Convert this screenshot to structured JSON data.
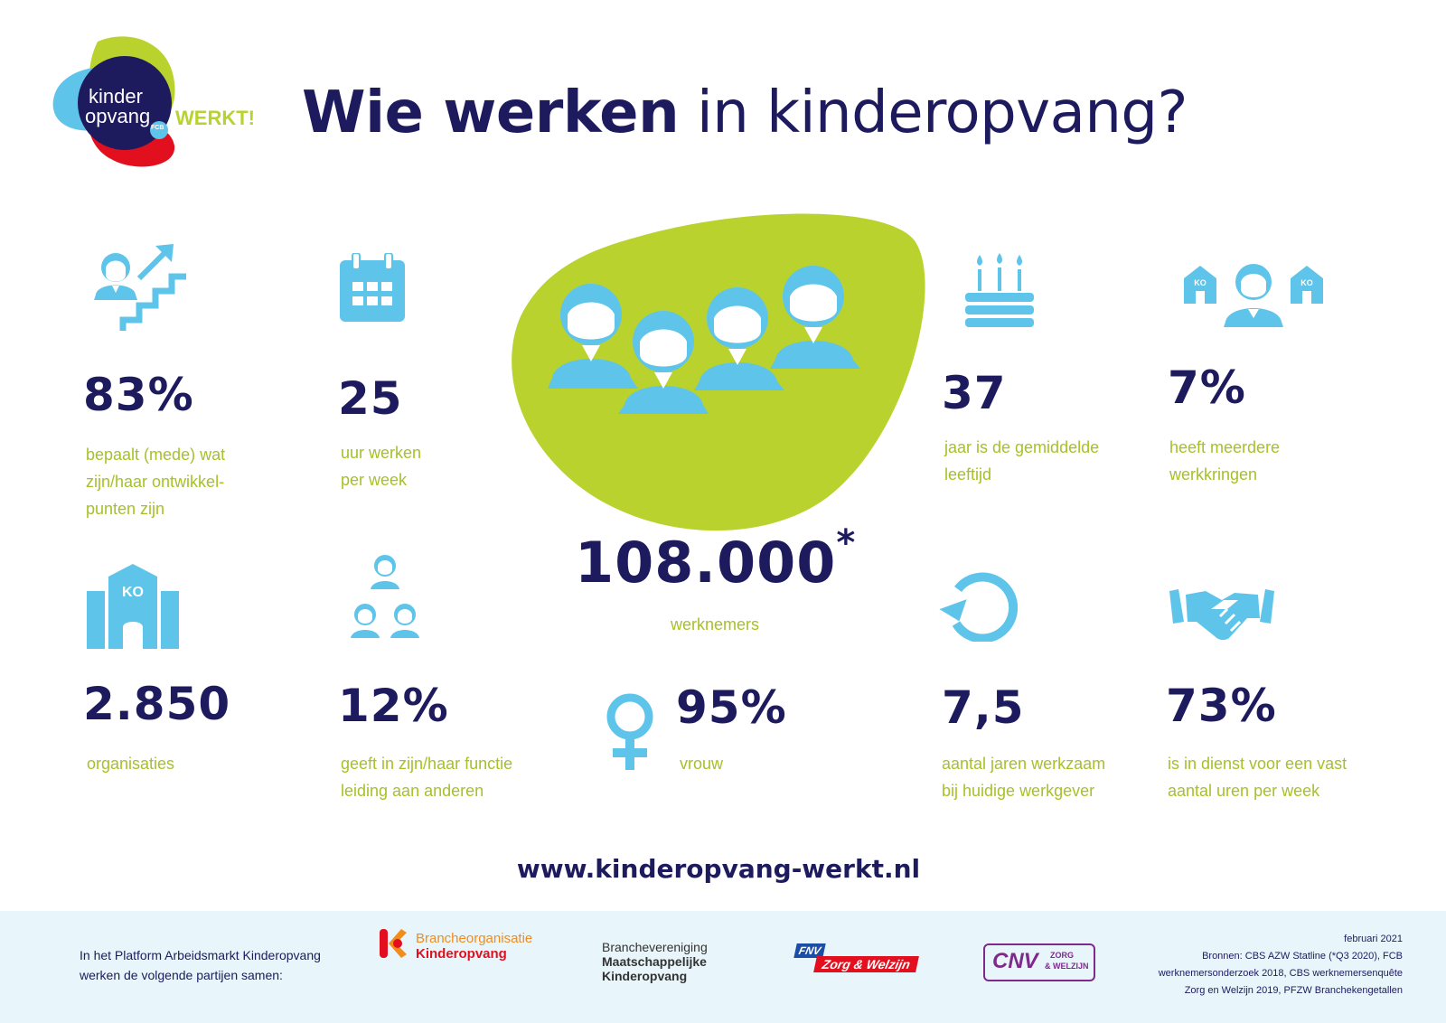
{
  "header": {
    "logo": {
      "line1": "kinder",
      "line2": "opvang",
      "badge": "FCB",
      "tag": "WERKT!"
    },
    "title_bold": "Wie werken",
    "title_rest": " in kinderopvang?"
  },
  "colors": {
    "navy": "#1d1b5e",
    "blue": "#5ec4ea",
    "green": "#b9d22e",
    "label_green": "#a6c12a",
    "red": "#e2101f"
  },
  "center": {
    "number": "108.000",
    "asterisk": "*",
    "label": "werknemers",
    "icon": "group-of-people-icon"
  },
  "stats": [
    {
      "icon": "career-stairs-icon",
      "value": "83%",
      "label_lines": [
        "bepaalt (mede) wat",
        "zijn/haar ontwikkel-",
        "punten zijn"
      ]
    },
    {
      "icon": "calendar-icon",
      "value": "25",
      "label_lines": [
        "uur werken",
        "per week"
      ]
    },
    {
      "icon": "birthday-cake-icon",
      "value": "37",
      "label_lines": [
        "jaar is de gemiddelde",
        "leeftijd"
      ]
    },
    {
      "icon": "person-between-buildings-icon",
      "value": "7%",
      "label_lines": [
        "heeft meerdere",
        "werkkringen"
      ]
    },
    {
      "icon": "ko-building-icon",
      "value": "2.850",
      "label_lines": [
        "organisaties"
      ]
    },
    {
      "icon": "hierarchy-people-icon",
      "value": "12%",
      "label_lines": [
        "geeft in zijn/haar functie",
        "leiding aan anderen"
      ]
    },
    {
      "icon": "female-symbol-icon",
      "value": "95%",
      "label_lines": [
        "vrouw"
      ]
    },
    {
      "icon": "circular-arrow-icon",
      "value": "7,5",
      "label_lines": [
        "aantal jaren werkzaam",
        "bij huidige werkgever"
      ]
    },
    {
      "icon": "handshake-icon",
      "value": "73%",
      "label_lines": [
        "is in dienst voor een vast",
        "aantal uren per week"
      ]
    }
  ],
  "building_sign": "KO",
  "url": "www.kinderopvang-werkt.nl",
  "footer": {
    "intro_lines": [
      "In het Platform Arbeidsmarkt Kinderopvang",
      "werken de volgende partijen samen:"
    ],
    "partners": {
      "bk": {
        "line1": "Brancheorganisatie",
        "line2": "Kinderopvang"
      },
      "bmk": {
        "line1": "Branchevereniging",
        "line2": "Maatschappelijke",
        "line3": "Kinderopvang"
      },
      "fnv": {
        "mark": "FNV",
        "text": "Zorg & Welzijn"
      },
      "cnv": {
        "mark": "CNV",
        "line1": "ZORG",
        "line2": "& WELZIJN"
      }
    },
    "source_lines": [
      "februari 2021",
      "Bronnen: CBS AZW Statline (*Q3 2020), FCB",
      "werknemersonderzoek 2018, CBS werknemersenquête",
      "Zorg en Welzijn 2019, PFZW Branchekengetallen"
    ]
  }
}
